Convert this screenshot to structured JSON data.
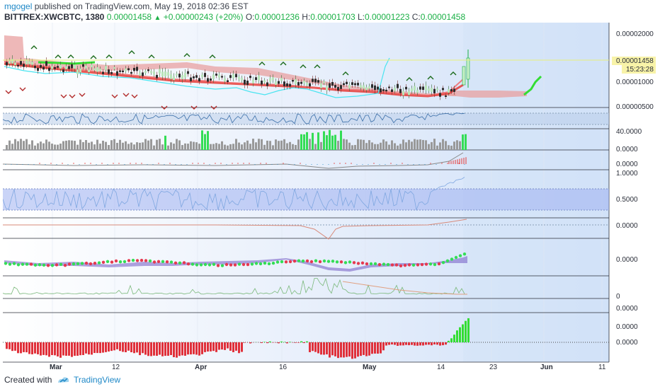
{
  "header": {
    "user": "mgogel",
    "published": "published on TradingView.com, May 19, 2018 02:36 EST",
    "symbol": "BITTREX:XWCBTC, 1380",
    "last": "0.00001458",
    "change": "+0.00000243 (+20%)",
    "ohlc": {
      "o_label": "O:",
      "o": "0.00001236",
      "h_label": "H:",
      "h": "0.00001703",
      "l_label": "L:",
      "l": "0.00001223",
      "c_label": "C:",
      "c": "0.00001458"
    }
  },
  "price_axis": {
    "labels": [
      "0.00002000",
      "0.00001000",
      "0.00000500"
    ],
    "last_price": "0.00001458",
    "countdown": "15:23:28"
  },
  "panes": [
    {
      "name": "volume",
      "labels": [
        "40.0000",
        "0.0000"
      ]
    },
    {
      "name": "indicator-3",
      "labels": [
        "0.0000"
      ]
    },
    {
      "name": "indicator-4",
      "labels": [
        "1.0000",
        "0.5000"
      ]
    },
    {
      "name": "indicator-5",
      "labels": [
        "0.0000"
      ]
    },
    {
      "name": "indicator-6",
      "labels": [
        "0.0000"
      ]
    },
    {
      "name": "indicator-7",
      "labels": [
        "0"
      ]
    },
    {
      "name": "indicator-8",
      "labels": [
        "0.0000",
        "0.0000",
        "0.0000"
      ]
    }
  ],
  "time_axis": [
    "Mar",
    "12",
    "Apr",
    "16",
    "May",
    "14",
    "23",
    "Jun",
    "11"
  ],
  "colors": {
    "accent": "#1e88c7",
    "up": "#1bb046",
    "down": "#e53935",
    "cloud": "#e89a9a",
    "panel_bg": "#e9f0fb"
  },
  "footer": {
    "created_with": "Created with",
    "brand": "TradingView"
  }
}
